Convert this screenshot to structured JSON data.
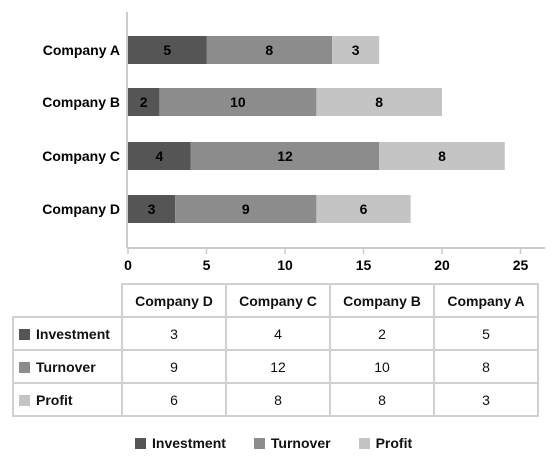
{
  "colors": {
    "investment": "#555555",
    "turnover": "#8c8c8c",
    "profit": "#c4c4c4"
  },
  "chart_data": {
    "type": "bar",
    "orientation": "horizontal",
    "stacked": true,
    "categories": [
      "Company A",
      "Company B",
      "Company C",
      "Company D"
    ],
    "series": [
      {
        "name": "Investment",
        "values": [
          5,
          2,
          4,
          3
        ]
      },
      {
        "name": "Turnover",
        "values": [
          8,
          10,
          12,
          9
        ]
      },
      {
        "name": "Profit",
        "values": [
          3,
          8,
          8,
          6
        ]
      }
    ],
    "xlim": [
      0,
      25
    ],
    "xticks": [
      0,
      5,
      10,
      15,
      20,
      25
    ],
    "grid": false,
    "legend_position": "bottom"
  },
  "table": {
    "columns": [
      "Company D",
      "Company C",
      "Company B",
      "Company A"
    ],
    "rows": [
      {
        "label": "Investment",
        "color": "#555555",
        "values": [
          "3",
          "4",
          "2",
          "5"
        ]
      },
      {
        "label": "Turnover",
        "color": "#8c8c8c",
        "values": [
          "9",
          "12",
          "10",
          "8"
        ]
      },
      {
        "label": "Profit",
        "color": "#c4c4c4",
        "values": [
          "6",
          "8",
          "8",
          "3"
        ]
      }
    ]
  },
  "legend": [
    {
      "label": "Investment",
      "color": "#555555"
    },
    {
      "label": "Turnover",
      "color": "#8c8c8c"
    },
    {
      "label": "Profit",
      "color": "#c4c4c4"
    }
  ]
}
